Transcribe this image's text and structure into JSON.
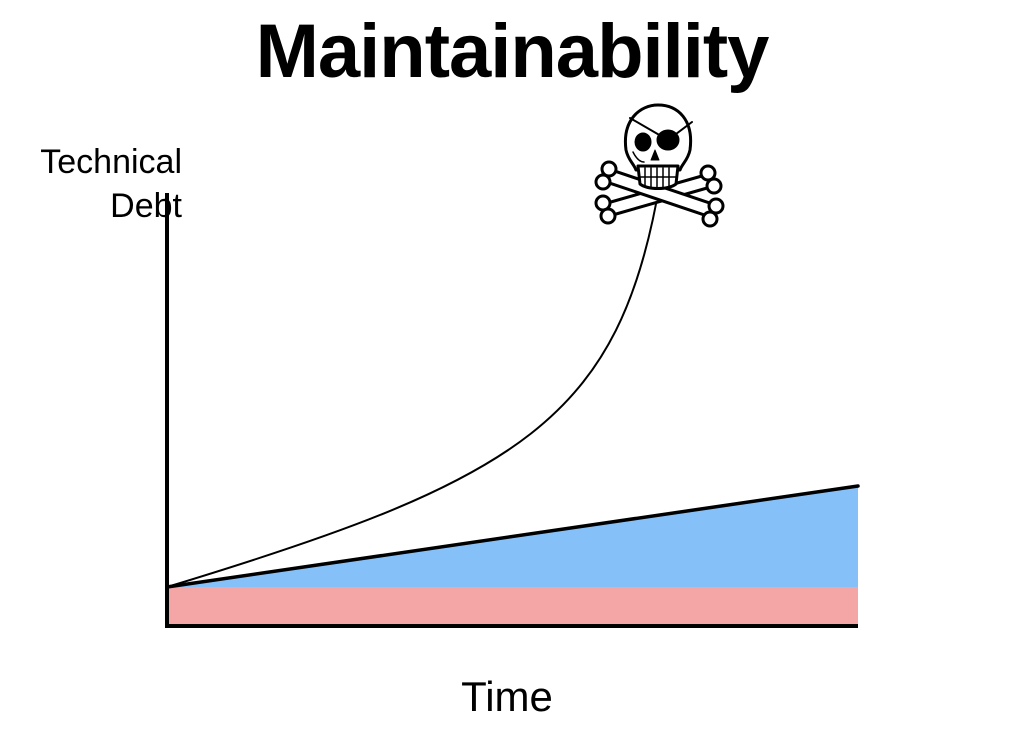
{
  "slide": {
    "title": "Maintainability",
    "y_axis_label_line1": "Technical",
    "y_axis_label_line2": "Debt",
    "x_axis_label": "Time"
  },
  "colors": {
    "baseline_band": "#f4a6a6",
    "linear_growth_area": "#86c0f8",
    "axis": "#000000",
    "curve": "#000000"
  },
  "icons": {
    "endpoint_icon": "skull-and-crossbones-icon"
  }
}
